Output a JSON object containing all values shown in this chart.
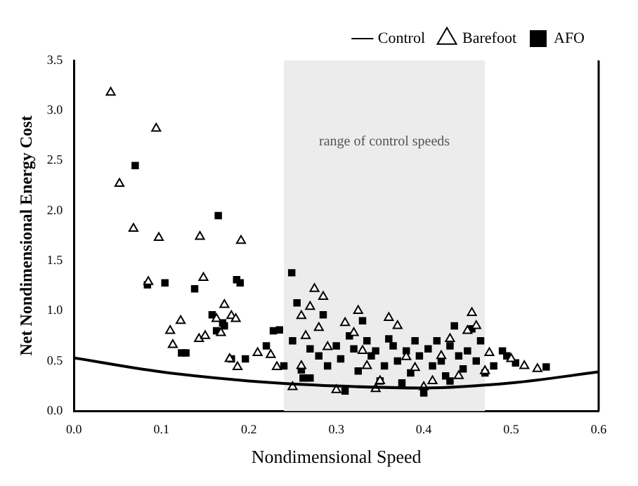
{
  "chart_data": {
    "type": "scatter",
    "xlabel": "Nondimensional Speed",
    "ylabel": "Net Nondimensional Energy Cost",
    "xlim": [
      0,
      0.6
    ],
    "xticks": [
      {
        "value": 0,
        "label": "0.0"
      },
      0.1,
      0.2,
      0.3,
      0.4,
      0.5,
      0.6
    ],
    "ylim": [
      0,
      3.5
    ],
    "yticks": [
      {
        "value": 0,
        "label": "0.0"
      },
      0.5,
      {
        "value": 1,
        "label": "1.0"
      },
      1.5,
      {
        "value": 2,
        "label": "2.0"
      },
      2.5,
      {
        "value": 3,
        "label": "3.0"
      },
      3.5
    ],
    "grid": false,
    "legend": "top right",
    "bands": [
      {
        "axis": "x",
        "from": 0.24,
        "to": 0.47,
        "label": "range of control speeds",
        "color": "#ececec"
      }
    ],
    "series": [
      {
        "name": "Control",
        "type": "line",
        "color": "#000000",
        "marker": "none",
        "line_style": "solid",
        "x": [
          0,
          0.1,
          0.2,
          0.3,
          0.4,
          0.5,
          0.6
        ],
        "values": [
          0.53,
          0.39,
          0.3,
          0.25,
          0.23,
          0.28,
          0.39
        ]
      },
      {
        "name": "Barefoot",
        "type": "scatter",
        "color": "#000000",
        "marker": "triangle",
        "x": [
          0.042,
          0.052,
          0.068,
          0.094,
          0.097,
          0.144,
          0.191,
          0.085,
          0.11,
          0.113,
          0.122,
          0.143,
          0.15,
          0.148,
          0.163,
          0.168,
          0.172,
          0.18,
          0.185,
          0.187,
          0.178,
          0.21,
          0.225,
          0.232,
          0.25,
          0.26,
          0.265,
          0.26,
          0.27,
          0.275,
          0.285,
          0.28,
          0.29,
          0.3,
          0.31,
          0.32,
          0.325,
          0.335,
          0.345,
          0.36,
          0.37,
          0.38,
          0.39,
          0.41,
          0.42,
          0.43,
          0.45,
          0.455,
          0.46,
          0.47,
          0.475,
          0.5,
          0.515,
          0.53,
          0.33,
          0.4,
          0.44,
          0.35
        ],
        "values": [
          3.18,
          2.27,
          1.82,
          2.82,
          1.73,
          1.74,
          1.7,
          1.29,
          0.8,
          0.66,
          0.9,
          0.72,
          0.75,
          1.33,
          0.92,
          0.78,
          1.06,
          0.95,
          0.92,
          0.44,
          0.52,
          0.58,
          0.56,
          0.44,
          0.24,
          0.45,
          0.75,
          0.95,
          1.04,
          1.22,
          1.14,
          0.83,
          0.64,
          0.21,
          0.88,
          0.78,
          1.0,
          0.45,
          0.22,
          0.93,
          0.85,
          0.54,
          0.43,
          0.3,
          0.55,
          0.72,
          0.8,
          0.98,
          0.85,
          0.4,
          0.58,
          0.52,
          0.45,
          0.42,
          0.6,
          0.24,
          0.35,
          0.3
        ]
      },
      {
        "name": "AFO",
        "type": "scatter",
        "color": "#000000",
        "marker": "square",
        "x": [
          0.07,
          0.165,
          0.104,
          0.084,
          0.123,
          0.128,
          0.138,
          0.163,
          0.158,
          0.17,
          0.172,
          0.18,
          0.19,
          0.186,
          0.196,
          0.22,
          0.228,
          0.235,
          0.24,
          0.25,
          0.249,
          0.255,
          0.26,
          0.262,
          0.27,
          0.27,
          0.28,
          0.285,
          0.29,
          0.3,
          0.305,
          0.31,
          0.315,
          0.32,
          0.33,
          0.335,
          0.34,
          0.345,
          0.35,
          0.36,
          0.365,
          0.37,
          0.375,
          0.38,
          0.39,
          0.395,
          0.4,
          0.405,
          0.41,
          0.415,
          0.42,
          0.425,
          0.43,
          0.435,
          0.44,
          0.445,
          0.45,
          0.455,
          0.46,
          0.465,
          0.47,
          0.48,
          0.49,
          0.495,
          0.505,
          0.54,
          0.325,
          0.355,
          0.385,
          0.43
        ],
        "values": [
          2.45,
          1.95,
          1.28,
          1.26,
          0.58,
          0.58,
          1.22,
          0.8,
          0.96,
          0.88,
          0.85,
          0.52,
          1.28,
          1.31,
          0.52,
          0.65,
          0.8,
          0.81,
          0.45,
          0.7,
          1.38,
          1.08,
          0.41,
          0.33,
          0.33,
          0.62,
          0.55,
          0.96,
          0.45,
          0.65,
          0.52,
          0.2,
          0.75,
          0.62,
          0.9,
          0.7,
          0.55,
          0.6,
          0.3,
          0.72,
          0.65,
          0.5,
          0.28,
          0.6,
          0.7,
          0.55,
          0.18,
          0.62,
          0.45,
          0.7,
          0.5,
          0.35,
          0.65,
          0.85,
          0.55,
          0.42,
          0.6,
          0.82,
          0.5,
          0.7,
          0.38,
          0.45,
          0.6,
          0.55,
          0.48,
          0.44,
          0.4,
          0.45,
          0.38,
          0.3
        ]
      }
    ]
  }
}
